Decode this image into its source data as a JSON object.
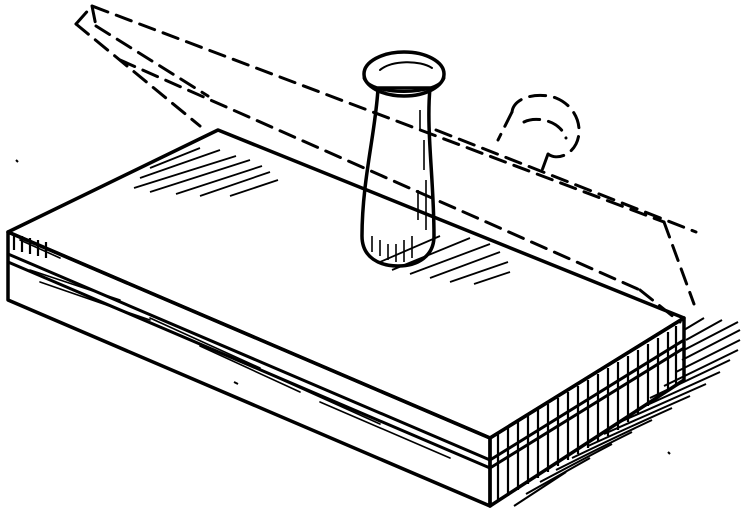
{
  "illustration": {
    "subject": "",
    "style": "black-and-white line engraving",
    "colors": {
      "ink": "#000000",
      "paper": "#ffffff"
    }
  }
}
